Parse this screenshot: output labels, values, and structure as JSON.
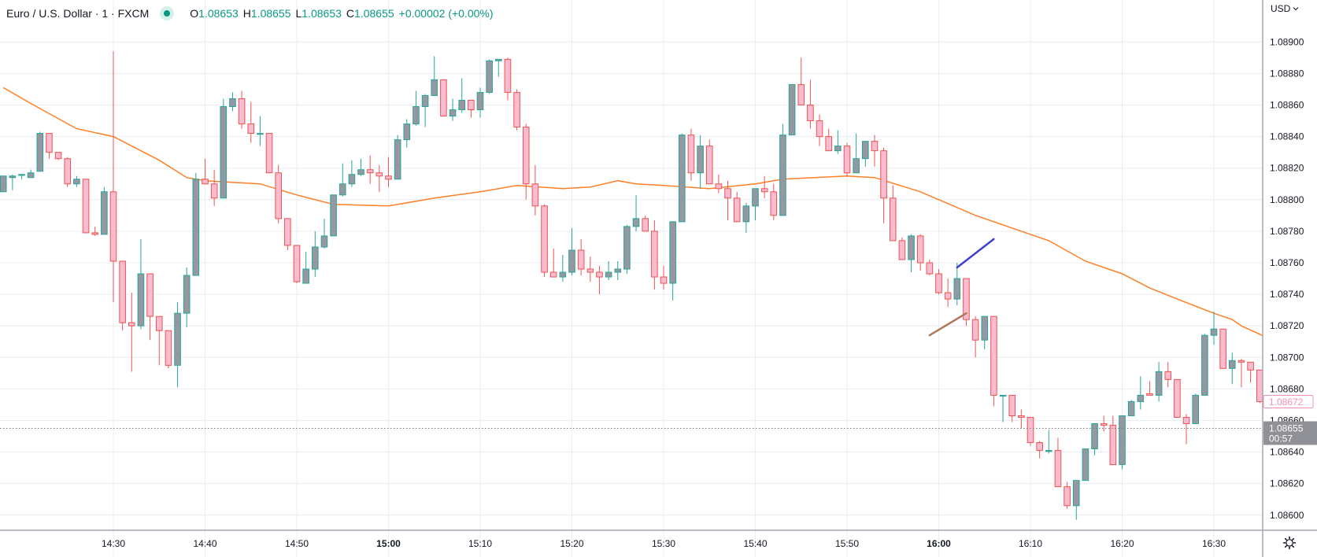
{
  "header": {
    "symbol_title": "Euro / U.S. Dollar · 1 · FXCM",
    "status_icon": "market-open-dot-icon",
    "ohlc": {
      "open_label": "O",
      "open": "1.08653",
      "high_label": "H",
      "high": "1.08655",
      "low_label": "L",
      "low": "1.08653",
      "close_label": "C",
      "close": "1.08655",
      "change": "+0.00002 (+0.00%)"
    }
  },
  "price_axis": {
    "currency": "USD",
    "currency_icon": "chevron-down-icon",
    "settings_icon": "gear-icon"
  },
  "colors": {
    "up_border": "#26a69a",
    "up_body": "#9598a1",
    "down_border": "#ef5350",
    "down_body": "#f8bbd0",
    "moving_average": "#ff7f24",
    "grid": "#e9eef3",
    "last_bar_label": "#f48fb1",
    "live_price_label": "#8f9196",
    "drawing_blue": "#3f3fd0",
    "drawing_brown": "#b0785a",
    "header_value": "#089981"
  },
  "chart_data": {
    "type": "candlestick",
    "interval": "1 minute",
    "ylim": [
      1.0859,
      1.0891
    ],
    "xlim": [
      "14:18",
      "16:36"
    ],
    "grid": true,
    "y_ticks": [
      "1.08900",
      "1.08880",
      "1.08860",
      "1.08840",
      "1.08820",
      "1.08800",
      "1.08780",
      "1.08760",
      "1.08740",
      "1.08720",
      "1.08700",
      "1.08680",
      "1.08660",
      "1.08640",
      "1.08620",
      "1.08600"
    ],
    "x_ticks": [
      {
        "label": "14:30",
        "bold": false
      },
      {
        "label": "14:40",
        "bold": false
      },
      {
        "label": "14:50",
        "bold": false
      },
      {
        "label": "15:00",
        "bold": true
      },
      {
        "label": "15:10",
        "bold": false
      },
      {
        "label": "15:20",
        "bold": false
      },
      {
        "label": "15:30",
        "bold": false
      },
      {
        "label": "15:40",
        "bold": false
      },
      {
        "label": "15:50",
        "bold": false
      },
      {
        "label": "16:00",
        "bold": true
      },
      {
        "label": "16:10",
        "bold": false
      },
      {
        "label": "16:20",
        "bold": false
      },
      {
        "label": "16:30",
        "bold": false
      }
    ],
    "candles_start": "14:18",
    "ohlc_fields": [
      "open",
      "high",
      "low",
      "close"
    ],
    "candles": [
      [
        1.08805,
        1.08815,
        1.08805,
        1.08815
      ],
      [
        1.08814,
        1.08816,
        1.08806,
        1.08815
      ],
      [
        1.08816,
        1.08816,
        1.08813,
        1.08816
      ],
      [
        1.08814,
        1.08819,
        1.08814,
        1.08817
      ],
      [
        1.08818,
        1.08843,
        1.08818,
        1.08842
      ],
      [
        1.08842,
        1.08842,
        1.08826,
        1.0883
      ],
      [
        1.0883,
        1.0883,
        1.08825,
        1.08826
      ],
      [
        1.08826,
        1.08827,
        1.08808,
        1.0881
      ],
      [
        1.0881,
        1.08815,
        1.08808,
        1.08813
      ],
      [
        1.08813,
        1.08813,
        1.08779,
        1.08779
      ],
      [
        1.08779,
        1.08783,
        1.08777,
        1.08778
      ],
      [
        1.08778,
        1.08808,
        1.08778,
        1.08805
      ],
      [
        1.08805,
        1.08894,
        1.08735,
        1.08761
      ],
      [
        1.08761,
        1.08761,
        1.08717,
        1.08722
      ],
      [
        1.08722,
        1.08741,
        1.08691,
        1.0872
      ],
      [
        1.0872,
        1.08775,
        1.08718,
        1.08753
      ],
      [
        1.08753,
        1.08753,
        1.08711,
        1.08726
      ],
      [
        1.08726,
        1.08726,
        1.08695,
        1.08717
      ],
      [
        1.08717,
        1.08717,
        1.08693,
        1.08695
      ],
      [
        1.08695,
        1.08735,
        1.08681,
        1.08728
      ],
      [
        1.08728,
        1.08757,
        1.08719,
        1.08752
      ],
      [
        1.08752,
        1.08817,
        1.08752,
        1.08813
      ],
      [
        1.08813,
        1.08826,
        1.0881,
        1.0881
      ],
      [
        1.0881,
        1.08819,
        1.08796,
        1.08801
      ],
      [
        1.08801,
        1.08864,
        1.08801,
        1.08859
      ],
      [
        1.08859,
        1.08868,
        1.08856,
        1.08864
      ],
      [
        1.08864,
        1.08869,
        1.08845,
        1.08848
      ],
      [
        1.08848,
        1.08862,
        1.08836,
        1.08842
      ],
      [
        1.08842,
        1.08853,
        1.08834,
        1.08842
      ],
      [
        1.08842,
        1.08842,
        1.08817,
        1.08817
      ],
      [
        1.08817,
        1.08822,
        1.08785,
        1.08788
      ],
      [
        1.08788,
        1.08788,
        1.08768,
        1.08771
      ],
      [
        1.08771,
        1.08771,
        1.08747,
        1.08748
      ],
      [
        1.08747,
        1.08767,
        1.08747,
        1.08756
      ],
      [
        1.08756,
        1.0878,
        1.08751,
        1.0877
      ],
      [
        1.0877,
        1.08788,
        1.08769,
        1.08777
      ],
      [
        1.08777,
        1.08803,
        1.08777,
        1.08803
      ],
      [
        1.08803,
        1.08823,
        1.08802,
        1.0881
      ],
      [
        1.0881,
        1.08825,
        1.08808,
        1.08816
      ],
      [
        1.08816,
        1.08826,
        1.08815,
        1.08819
      ],
      [
        1.08819,
        1.08828,
        1.0881,
        1.08817
      ],
      [
        1.08817,
        1.08822,
        1.08805,
        1.08815
      ],
      [
        1.08815,
        1.08827,
        1.08808,
        1.08813
      ],
      [
        1.08813,
        1.08841,
        1.08813,
        1.08838
      ],
      [
        1.08838,
        1.08851,
        1.08833,
        1.08848
      ],
      [
        1.08848,
        1.08869,
        1.08847,
        1.08859
      ],
      [
        1.08859,
        1.08867,
        1.08846,
        1.08866
      ],
      [
        1.08866,
        1.08891,
        1.08866,
        1.08876
      ],
      [
        1.08876,
        1.08876,
        1.08853,
        1.08853
      ],
      [
        1.08853,
        1.08864,
        1.0885,
        1.08857
      ],
      [
        1.08857,
        1.08877,
        1.08855,
        1.08863
      ],
      [
        1.08863,
        1.08863,
        1.08852,
        1.08857
      ],
      [
        1.08857,
        1.08871,
        1.08852,
        1.08868
      ],
      [
        1.08868,
        1.08889,
        1.08867,
        1.08888
      ],
      [
        1.08888,
        1.08889,
        1.08878,
        1.08889
      ],
      [
        1.08889,
        1.0889,
        1.08863,
        1.08868
      ],
      [
        1.08868,
        1.0887,
        1.08844,
        1.08846
      ],
      [
        1.08846,
        1.08848,
        1.088,
        1.0881
      ],
      [
        1.0881,
        1.08822,
        1.0879,
        1.08796
      ],
      [
        1.08796,
        1.08797,
        1.08751,
        1.08754
      ],
      [
        1.08754,
        1.08769,
        1.08751,
        1.08751
      ],
      [
        1.08751,
        1.08765,
        1.08748,
        1.08754
      ],
      [
        1.08754,
        1.08782,
        1.08752,
        1.08768
      ],
      [
        1.08768,
        1.08775,
        1.08752,
        1.08756
      ],
      [
        1.08756,
        1.08764,
        1.08748,
        1.08754
      ],
      [
        1.08754,
        1.08758,
        1.0874,
        1.08751
      ],
      [
        1.08751,
        1.08761,
        1.08749,
        1.08754
      ],
      [
        1.08754,
        1.08761,
        1.08749,
        1.08756
      ],
      [
        1.08756,
        1.08784,
        1.08753,
        1.08783
      ],
      [
        1.08783,
        1.08803,
        1.0878,
        1.08788
      ],
      [
        1.08788,
        1.0879,
        1.0878,
        1.0878
      ],
      [
        1.0878,
        1.08787,
        1.08743,
        1.08751
      ],
      [
        1.08751,
        1.08758,
        1.08743,
        1.08747
      ],
      [
        1.08747,
        1.08786,
        1.08736,
        1.08786
      ],
      [
        1.08786,
        1.08842,
        1.08786,
        1.08841
      ],
      [
        1.08841,
        1.08845,
        1.08812,
        1.08817
      ],
      [
        1.08817,
        1.08841,
        1.08807,
        1.08834
      ],
      [
        1.08834,
        1.08838,
        1.0881,
        1.0881
      ],
      [
        1.0881,
        1.08816,
        1.08804,
        1.08807
      ],
      [
        1.08807,
        1.08812,
        1.08787,
        1.08801
      ],
      [
        1.08801,
        1.08805,
        1.08786,
        1.08786
      ],
      [
        1.08786,
        1.08798,
        1.08779,
        1.08796
      ],
      [
        1.08796,
        1.08807,
        1.08787,
        1.08807
      ],
      [
        1.08807,
        1.08815,
        1.08801,
        1.08805
      ],
      [
        1.08805,
        1.0881,
        1.08787,
        1.0879
      ],
      [
        1.0879,
        1.08848,
        1.0879,
        1.08841
      ],
      [
        1.08841,
        1.08873,
        1.08841,
        1.08873
      ],
      [
        1.08873,
        1.0889,
        1.0886,
        1.0886
      ],
      [
        1.0886,
        1.08876,
        1.08845,
        1.0885
      ],
      [
        1.0885,
        1.08854,
        1.08834,
        1.0884
      ],
      [
        1.0884,
        1.08845,
        1.08831,
        1.08831
      ],
      [
        1.08831,
        1.08844,
        1.08829,
        1.08834
      ],
      [
        1.08834,
        1.08836,
        1.08815,
        1.08817
      ],
      [
        1.08817,
        1.08842,
        1.08817,
        1.08826
      ],
      [
        1.08826,
        1.08837,
        1.08821,
        1.08837
      ],
      [
        1.08837,
        1.08841,
        1.08821,
        1.08831
      ],
      [
        1.08831,
        1.08833,
        1.08785,
        1.08801
      ],
      [
        1.08801,
        1.08809,
        1.08774,
        1.08774
      ],
      [
        1.08774,
        1.08776,
        1.08762,
        1.08762
      ],
      [
        1.08762,
        1.08778,
        1.08754,
        1.08777
      ],
      [
        1.08777,
        1.08778,
        1.08755,
        1.0876
      ],
      [
        1.0876,
        1.08762,
        1.08752,
        1.08753
      ],
      [
        1.08753,
        1.08756,
        1.0874,
        1.08741
      ],
      [
        1.08741,
        1.0875,
        1.08732,
        1.08737
      ],
      [
        1.08737,
        1.0876,
        1.08733,
        1.0875
      ],
      [
        1.0875,
        1.0875,
        1.0872,
        1.08724
      ],
      [
        1.08724,
        1.08726,
        1.087,
        1.08711
      ],
      [
        1.08711,
        1.08726,
        1.08705,
        1.08726
      ],
      [
        1.08726,
        1.08726,
        1.08669,
        1.08676
      ],
      [
        1.08676,
        1.08676,
        1.08659,
        1.08676
      ],
      [
        1.08676,
        1.08676,
        1.08659,
        1.08663
      ],
      [
        1.08663,
        1.08667,
        1.08655,
        1.08662
      ],
      [
        1.08662,
        1.08662,
        1.08644,
        1.08646
      ],
      [
        1.08646,
        1.08647,
        1.08636,
        1.08641
      ],
      [
        1.08641,
        1.08654,
        1.08639,
        1.08641
      ],
      [
        1.08641,
        1.08649,
        1.08618,
        1.08618
      ],
      [
        1.08618,
        1.08621,
        1.08604,
        1.08606
      ],
      [
        1.08606,
        1.08622,
        1.08597,
        1.08622
      ],
      [
        1.08622,
        1.08642,
        1.08622,
        1.08642
      ],
      [
        1.08642,
        1.08658,
        1.08638,
        1.08658
      ],
      [
        1.08658,
        1.08663,
        1.08653,
        1.08657
      ],
      [
        1.08657,
        1.08663,
        1.08632,
        1.08632
      ],
      [
        1.08632,
        1.08663,
        1.08629,
        1.08663
      ],
      [
        1.08663,
        1.08673,
        1.08663,
        1.08672
      ],
      [
        1.08672,
        1.08688,
        1.08667,
        1.08676
      ],
      [
        1.08677,
        1.08685,
        1.08676,
        1.08676
      ],
      [
        1.08676,
        1.08697,
        1.08672,
        1.08691
      ],
      [
        1.08691,
        1.08697,
        1.08681,
        1.08686
      ],
      [
        1.08686,
        1.08686,
        1.08662,
        1.08662
      ],
      [
        1.08662,
        1.08664,
        1.08645,
        1.08658
      ],
      [
        1.08658,
        1.08677,
        1.08658,
        1.08676
      ],
      [
        1.08676,
        1.08715,
        1.08676,
        1.08714
      ],
      [
        1.08714,
        1.08729,
        1.08708,
        1.08718
      ],
      [
        1.08718,
        1.08718,
        1.08693,
        1.08693
      ],
      [
        1.08693,
        1.08703,
        1.08683,
        1.08698
      ],
      [
        1.08698,
        1.08699,
        1.08681,
        1.08697
      ],
      [
        1.08697,
        1.08697,
        1.08684,
        1.08692
      ],
      [
        1.08692,
        1.08692,
        1.08671,
        1.08672
      ]
    ],
    "moving_average": [
      [
        "14:18",
        1.08871
      ],
      [
        "14:21",
        1.08861
      ],
      [
        "14:26",
        1.08845
      ],
      [
        "14:30",
        1.0884
      ],
      [
        "14:35",
        1.08825
      ],
      [
        "14:38",
        1.08814
      ],
      [
        "14:40",
        1.08812
      ],
      [
        "14:46",
        1.0881
      ],
      [
        "14:50",
        1.08803
      ],
      [
        "14:54",
        1.08797
      ],
      [
        "15:00",
        1.08796
      ],
      [
        "15:05",
        1.08801
      ],
      [
        "15:10",
        1.08805
      ],
      [
        "15:14",
        1.08809
      ],
      [
        "15:19",
        1.08807
      ],
      [
        "15:22",
        1.08808
      ],
      [
        "15:25",
        1.08812
      ],
      [
        "15:27",
        1.0881
      ],
      [
        "15:30",
        1.08809
      ],
      [
        "15:35",
        1.08807
      ],
      [
        "15:40",
        1.0881
      ],
      [
        "15:43",
        1.08813
      ],
      [
        "15:50",
        1.08815
      ],
      [
        "15:53",
        1.08814
      ],
      [
        "15:58",
        1.08805
      ],
      [
        "16:00",
        1.088
      ],
      [
        "16:04",
        1.0879
      ],
      [
        "16:09",
        1.0878
      ],
      [
        "16:12",
        1.08774
      ],
      [
        "16:16",
        1.08761
      ],
      [
        "16:20",
        1.08753
      ],
      [
        "16:23",
        1.08744
      ],
      [
        "16:26",
        1.08737
      ],
      [
        "16:30",
        1.08728
      ],
      [
        "16:32",
        1.08724
      ],
      [
        "16:33",
        1.0872
      ],
      [
        "16:36",
        1.08712
      ]
    ],
    "drawings": [
      {
        "color_key": "drawing_blue",
        "from": [
          "16:02",
          1.08757
        ],
        "to": [
          "16:06",
          1.08775
        ]
      },
      {
        "color_key": "drawing_brown",
        "from": [
          "15:59",
          1.08714
        ],
        "to": [
          "16:03",
          1.08728
        ]
      }
    ],
    "last_bar_price": "1.08672",
    "live_price": "1.08655",
    "bar_countdown": "00:57"
  }
}
